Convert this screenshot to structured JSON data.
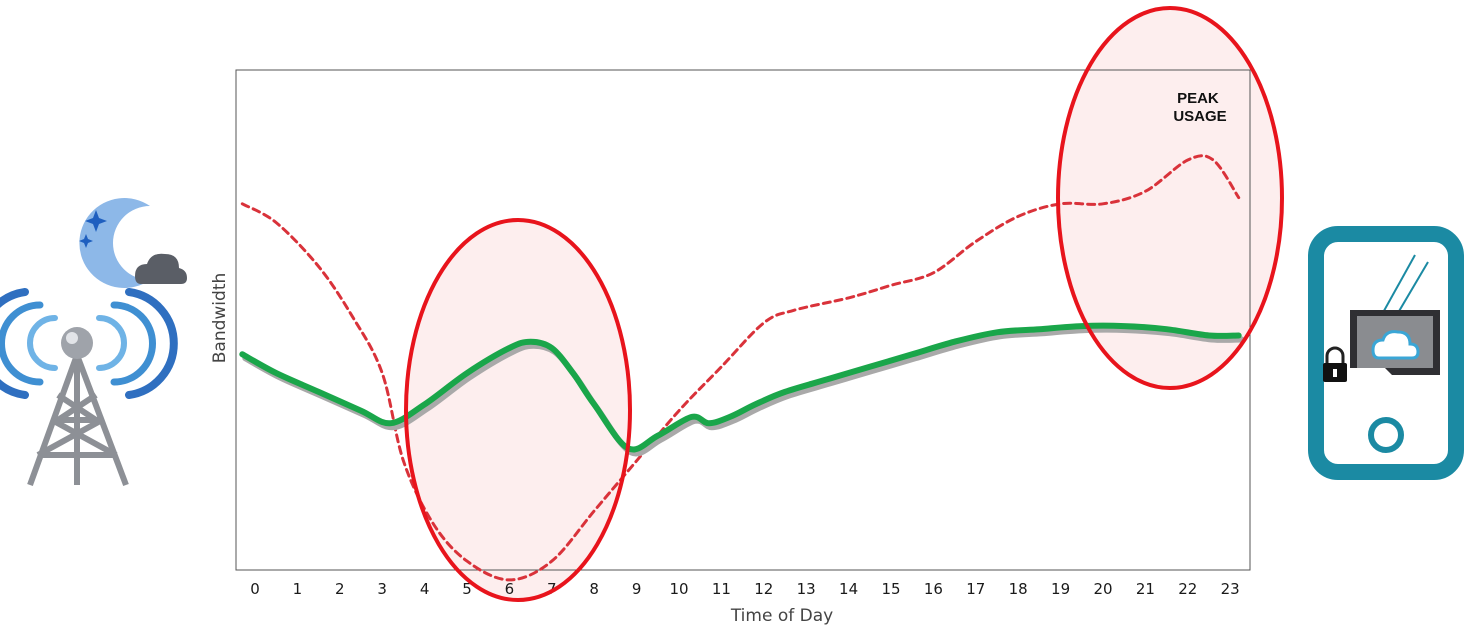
{
  "chart_data": {
    "type": "line",
    "xlabel": "Time of Day",
    "ylabel": "Bandwidth",
    "categories": [
      "0",
      "1",
      "2",
      "3",
      "4",
      "5",
      "6",
      "7",
      "8",
      "9",
      "10",
      "11",
      "12",
      "13",
      "14",
      "15",
      "16",
      "17",
      "18",
      "19",
      "20",
      "21",
      "22",
      "23"
    ],
    "series": [
      {
        "style": "dashed",
        "color": "#d9323a",
        "x": [
          -0.3,
          0.5,
          1.5,
          2.3,
          3.0,
          3.5,
          4.2,
          5.0,
          6.0,
          7.0,
          8.0,
          9.0,
          10.0,
          11.0,
          12.0,
          12.7,
          14.0,
          15.0,
          16.0,
          17.0,
          18.0,
          19.0,
          20.0,
          21.0,
          22.0,
          22.6,
          23.2
        ],
        "values": [
          0.53,
          0.5,
          0.43,
          0.35,
          0.26,
          0.12,
          0.02,
          -0.04,
          -0.07,
          -0.04,
          0.04,
          0.12,
          0.2,
          0.27,
          0.34,
          0.36,
          0.38,
          0.4,
          0.42,
          0.47,
          0.51,
          0.53,
          0.53,
          0.55,
          0.6,
          0.6,
          0.54
        ]
      },
      {
        "style": "solid",
        "color": "#1aa64a",
        "x": [
          -0.3,
          0.5,
          1.5,
          2.5,
          3.2,
          4.0,
          5.0,
          6.0,
          6.5,
          7.0,
          7.5,
          8.0,
          8.8,
          9.5,
          10.3,
          10.7,
          11.2,
          11.8,
          12.5,
          13.5,
          14.5,
          15.5,
          16.5,
          17.5,
          18.5,
          19.5,
          20.5,
          21.5,
          22.5,
          23.2
        ],
        "values": [
          0.29,
          0.26,
          0.23,
          0.2,
          0.18,
          0.21,
          0.26,
          0.3,
          0.31,
          0.3,
          0.26,
          0.21,
          0.14,
          0.16,
          0.19,
          0.18,
          0.19,
          0.21,
          0.23,
          0.25,
          0.27,
          0.29,
          0.31,
          0.325,
          0.33,
          0.335,
          0.335,
          0.33,
          0.32,
          0.32
        ]
      }
    ],
    "annotations": [
      {
        "text_lines": [
          "PEAK",
          "USAGE"
        ]
      }
    ],
    "grid": false,
    "legend": "none"
  },
  "icons": {
    "left": "cell-tower-icon",
    "left_overlay": "moon-night-icon",
    "right": "phone-cloud-storage-icon",
    "lock": "lock-icon"
  },
  "colors": {
    "highlight_stroke": "#e8141c",
    "highlight_fill": "#fdeeee",
    "accent_teal": "#1b8aa3"
  }
}
